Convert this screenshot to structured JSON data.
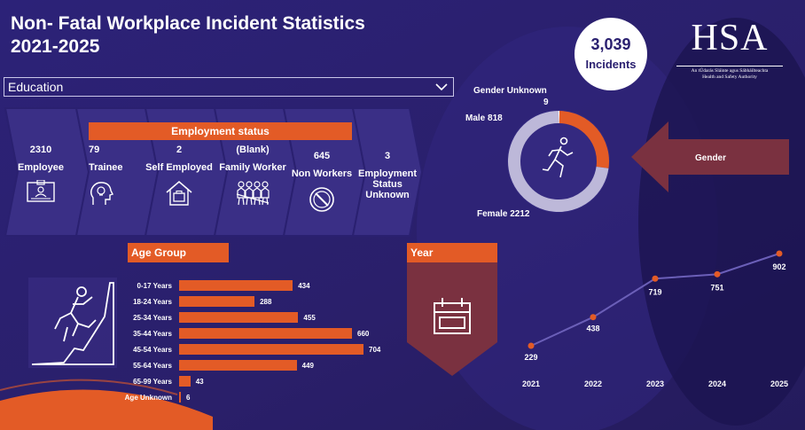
{
  "title": [
    "Non- Fatal Workplace Incident Statistics",
    "2021-2025"
  ],
  "dropdown": {
    "selected": "Education"
  },
  "total": {
    "value": "3,039",
    "label": "Incidents"
  },
  "logo": {
    "text": "HSA",
    "sub": [
      "An tÚdarás Sláinte agus Sábháilteachta",
      "Health and Safety Authority"
    ]
  },
  "employment": {
    "header": "Employment status",
    "items": [
      {
        "value": "2310",
        "label": "Employee",
        "icon": "id-card-icon"
      },
      {
        "value": "79",
        "label": "Trainee",
        "icon": "lightbulb-head-icon"
      },
      {
        "value": "2",
        "label": "Self Employed",
        "icon": "house-briefcase-icon"
      },
      {
        "value": "(Blank)",
        "label": "Family Worker",
        "icon": "family-icon"
      },
      {
        "value": "645",
        "label": "Non Workers",
        "icon": "no-entry-icon"
      },
      {
        "value": "3",
        "label": "Employment Status Unknown",
        "icon": ""
      }
    ]
  },
  "gender": {
    "label": "Gender"
  },
  "year_header": "Year",
  "colors": {
    "accent": "#e35b26",
    "background": "#2a2070",
    "donut_female": "#bdb8d9",
    "line": "#6b5fb8"
  },
  "chart_data": [
    {
      "type": "pie",
      "categories": [
        "Gender Unknown",
        "Male",
        "Female"
      ],
      "values": [
        9,
        818,
        2212
      ],
      "labels": [
        "Gender Unknown",
        "Male 818",
        "Female 2212"
      ],
      "unknown_value_label": "9"
    },
    {
      "type": "bar",
      "title": "Age Group",
      "categories": [
        "0-17 Years",
        "18-24 Years",
        "25-34 Years",
        "35-44 Years",
        "45-54 Years",
        "55-64 Years",
        "65-99 Years",
        "Age Unknown"
      ],
      "values": [
        434,
        288,
        455,
        660,
        704,
        449,
        43,
        6
      ]
    },
    {
      "type": "line",
      "title": "Year",
      "x": [
        "2021",
        "2022",
        "2023",
        "2024",
        "2025"
      ],
      "values": [
        229,
        438,
        719,
        751,
        902
      ]
    }
  ]
}
